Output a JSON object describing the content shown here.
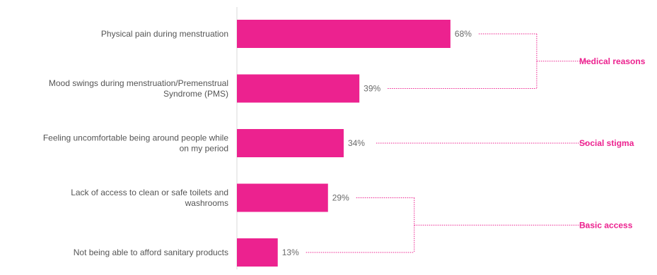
{
  "chart_data": {
    "type": "bar",
    "orientation": "horizontal",
    "categories": [
      "Physical pain during menstruation",
      "Mood swings during menstruation/Premenstrual Syndrome (PMS)",
      "Feeling uncomfortable being around people while on my period",
      "Lack of access to clean or safe toilets and washrooms",
      "Not being able to afford sanitary products"
    ],
    "category_lines": [
      [
        "Physical pain during menstruation"
      ],
      [
        "Mood swings during menstruation/Premenstrual",
        "Syndrome (PMS)"
      ],
      [
        "Feeling uncomfortable being around people while",
        "on my period"
      ],
      [
        "Lack of access to clean or safe toilets and",
        "washrooms"
      ],
      [
        "Not being able to afford sanitary products"
      ]
    ],
    "values": [
      68,
      39,
      34,
      29,
      13
    ],
    "value_labels": [
      "68%",
      "39%",
      "34%",
      "29%",
      "13%"
    ],
    "xlim": [
      0,
      100
    ],
    "unit": "%",
    "grid": false,
    "bar_color": "#ec228f",
    "groups": [
      {
        "label": "Medical reasons",
        "members": [
          0,
          1
        ]
      },
      {
        "label": "Social stigma",
        "members": [
          2
        ]
      },
      {
        "label": "Basic access",
        "members": [
          3,
          4
        ]
      }
    ],
    "group_label_color": "#ec228f",
    "connector_color": "#ec228f",
    "axis_color": "#d9d9d9"
  }
}
